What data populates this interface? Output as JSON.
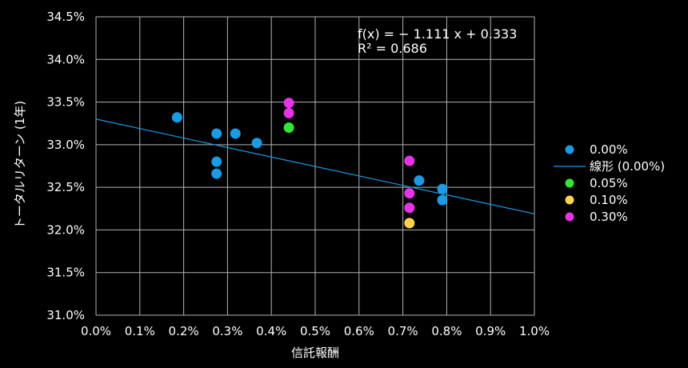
{
  "chart_data": {
    "type": "scatter",
    "xlabel": "信託報酬",
    "ylabel": "トータルリターン (1年)",
    "xlim": [
      0.0,
      1.0
    ],
    "ylim": [
      31.0,
      34.5
    ],
    "x_ticks": [
      "0.0%",
      "0.1%",
      "0.2%",
      "0.3%",
      "0.4%",
      "0.5%",
      "0.6%",
      "0.7%",
      "0.8%",
      "0.9%",
      "1.0%"
    ],
    "y_ticks": [
      "34.5%",
      "34.0%",
      "33.5%",
      "33.0%",
      "32.5%",
      "32.0%",
      "31.5%",
      "31.0%"
    ],
    "grid": true,
    "legend_position": "right",
    "series": [
      {
        "name": "0.00%",
        "color": "#1a9be3",
        "points": [
          {
            "x": 0.185,
            "y": 33.32
          },
          {
            "x": 0.275,
            "y": 33.13
          },
          {
            "x": 0.275,
            "y": 32.8
          },
          {
            "x": 0.275,
            "y": 32.66
          },
          {
            "x": 0.318,
            "y": 33.13
          },
          {
            "x": 0.367,
            "y": 33.02
          },
          {
            "x": 0.737,
            "y": 32.58
          },
          {
            "x": 0.79,
            "y": 32.48
          },
          {
            "x": 0.79,
            "y": 32.35
          }
        ]
      },
      {
        "name": "0.05%",
        "color": "#33e633",
        "points": [
          {
            "x": 0.44,
            "y": 33.2
          }
        ]
      },
      {
        "name": "0.10%",
        "color": "#ffd24d",
        "points": [
          {
            "x": 0.715,
            "y": 32.08
          }
        ]
      },
      {
        "name": "0.30%",
        "color": "#e633e6",
        "points": [
          {
            "x": 0.44,
            "y": 33.49
          },
          {
            "x": 0.44,
            "y": 33.37
          },
          {
            "x": 0.715,
            "y": 32.81
          },
          {
            "x": 0.715,
            "y": 32.43
          },
          {
            "x": 0.715,
            "y": 32.26
          }
        ]
      }
    ],
    "trendline": {
      "name": "線形 (0.00%)",
      "color": "#1a9be3",
      "slope": -1.111,
      "intercept": 0.333,
      "equation": "f(x) = − 1.111 x + 0.333",
      "r2": "R² = 0.686"
    },
    "legend": [
      {
        "label": "0.00%",
        "kind": "marker",
        "color": "#1a9be3"
      },
      {
        "label": "線形 (0.00%)",
        "kind": "line",
        "color": "#1a9be3"
      },
      {
        "label": "0.05%",
        "kind": "marker",
        "color": "#33e633"
      },
      {
        "label": "0.10%",
        "kind": "marker",
        "color": "#ffd24d"
      },
      {
        "label": "0.30%",
        "kind": "marker",
        "color": "#e633e6"
      }
    ]
  }
}
